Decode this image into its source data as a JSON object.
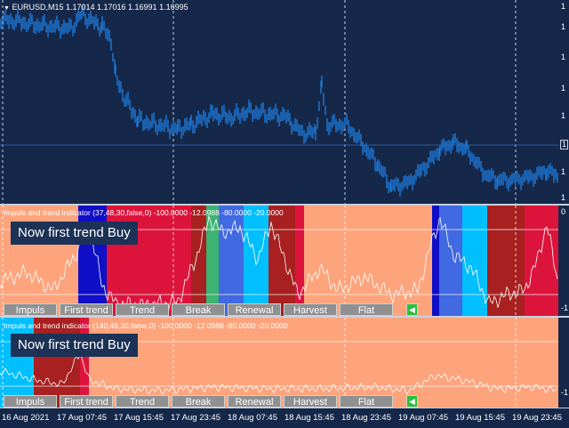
{
  "main_chart": {
    "title": "EURUSD,M15  1.17014 1.17016 1.16991 1.16995",
    "colors": {
      "background": "#15284a",
      "candles": "#1e78d8",
      "grid": "#c8d0e0"
    }
  },
  "indicator1": {
    "header": "Impuls and trend indicator (37,48,30,false,0) -100.0000 -12.0988 -80.0000 -20.0000",
    "banner": "Now first trend Buy",
    "y_top": "0",
    "y_bottom": "-1"
  },
  "indicator2": {
    "header": "Impuls and trend indicator (140,48,30,false,0) -100.0000 -12.0988 -80.0000 -20.0000",
    "banner": "Now first trend Buy"
  },
  "price_axis": {
    "labels": [
      "1",
      "1",
      "1",
      "1",
      "1",
      "1",
      "1"
    ],
    "current": "1"
  },
  "buttons": [
    "Impuls",
    "First trend",
    "Trend",
    "Break",
    "Renewal",
    "Harvest",
    "Flat"
  ],
  "state_colors": {
    "flat": "#fea47c",
    "impuls": "#0f0fc8",
    "first_trend": "#dc143c",
    "trend": "#a82020",
    "break": "#3cb371",
    "renewal": "#4169e1",
    "harvest": "#00bfff",
    "speaker": "#2bbf3a"
  },
  "time_axis": [
    "16 Aug 2021",
    "17 Aug 07:45",
    "17 Aug 15:45",
    "17 Aug 23:45",
    "18 Aug 07:45",
    "18 Aug 15:45",
    "18 Aug 23:45",
    "19 Aug 07:45",
    "19 Aug 15:45",
    "19 Aug 23:45"
  ]
}
